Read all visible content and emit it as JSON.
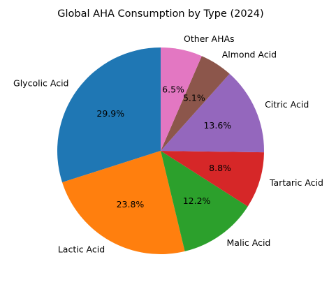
{
  "chart_data": {
    "type": "pie",
    "title": "Global AHA Consumption by Type (2024)",
    "start_angle_deg": 90,
    "direction": "counterclockwise",
    "categories": [
      "Glycolic Acid",
      "Lactic Acid",
      "Malic Acid",
      "Tartaric Acid",
      "Citric Acid",
      "Almond Acid",
      "Other AHAs"
    ],
    "values": [
      29.9,
      23.8,
      12.2,
      8.8,
      13.6,
      5.1,
      6.5
    ],
    "value_labels": [
      "29.9%",
      "23.8%",
      "12.2%",
      "8.8%",
      "13.6%",
      "5.1%",
      "6.5%"
    ],
    "colors": [
      "#1f77b4",
      "#ff7f0e",
      "#2ca02c",
      "#d62728",
      "#9467bd",
      "#8c564b",
      "#e377c2"
    ],
    "legend": "none"
  }
}
